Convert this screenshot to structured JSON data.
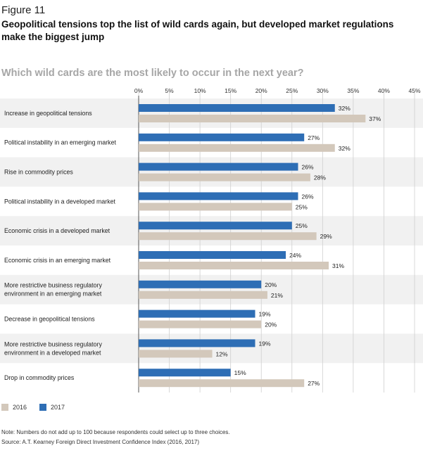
{
  "figure_label": "Figure 11",
  "figure_title": "Geopolitical tensions top the list of wild cards again, but developed market regulations make the biggest jump",
  "subtitle": "Which wild cards are the most likely to occur in the next year?",
  "legend": [
    {
      "label": "2016",
      "color": "#d3c8bb"
    },
    {
      "label": "2017",
      "color": "#2e6eb5"
    }
  ],
  "notes": {
    "note": "Note: Numbers do not add up to 100 because respondents could select up to three choices.",
    "source": "Source: A.T. Kearney Foreign Direct Investment Confidence Index (2016, 2017)"
  },
  "chart_data": {
    "type": "bar",
    "orientation": "horizontal",
    "title": "Which wild cards are the most likely to occur in the next year?",
    "xlim": [
      0,
      45
    ],
    "xticks": [
      "0%",
      "5%",
      "10%",
      "15%",
      "20%",
      "25%",
      "30%",
      "35%",
      "40%",
      "45%"
    ],
    "grid": true,
    "legend_position": "bottom-left",
    "categories": [
      [
        "Increase in geopolitical tensions"
      ],
      [
        "Political instability in an emerging market"
      ],
      [
        "Rise in commodity prices"
      ],
      [
        "Political instability in a developed market"
      ],
      [
        "Economic crisis in a developed market"
      ],
      [
        "Economic crisis in an emerging market"
      ],
      [
        "More restrictive business regulatory",
        "environment in an emerging market"
      ],
      [
        "Decrease in geopolitical tensions"
      ],
      [
        "More restrictive business regulatory",
        "environment in a developed market"
      ],
      [
        "Drop in commodity prices"
      ]
    ],
    "series": [
      {
        "name": "2017",
        "color": "#2e6eb5",
        "values": [
          32,
          27,
          26,
          26,
          25,
          24,
          20,
          19,
          19,
          15
        ]
      },
      {
        "name": "2016",
        "color": "#d3c8bb",
        "values": [
          37,
          32,
          28,
          25,
          29,
          31,
          21,
          20,
          12,
          27
        ]
      }
    ]
  }
}
